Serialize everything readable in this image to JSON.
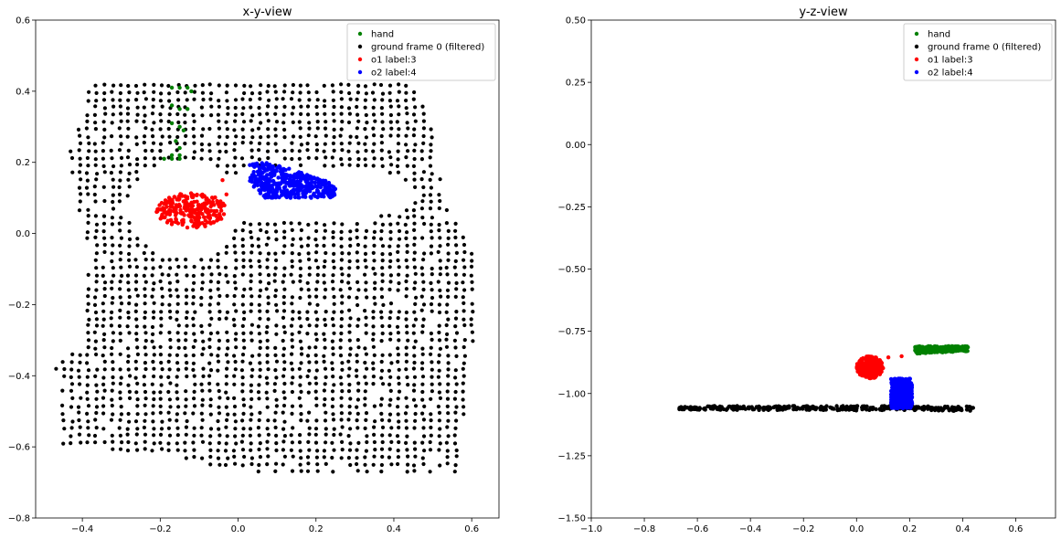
{
  "chart_data": [
    {
      "type": "scatter",
      "title": "x-y-view",
      "xlabel": "",
      "ylabel": "",
      "xlim": [
        -0.52,
        0.67
      ],
      "ylim": [
        -0.8,
        0.6
      ],
      "xticks": [
        "−0.4",
        "−0.2",
        "0.0",
        "0.2",
        "0.4",
        "0.6"
      ],
      "xtick_values": [
        -0.4,
        -0.2,
        0.0,
        0.2,
        0.4,
        0.6
      ],
      "yticks": [
        "0.6",
        "0.4",
        "0.2",
        "0.0",
        "−0.2",
        "−0.4",
        "−0.6",
        "−0.8"
      ],
      "ytick_values": [
        0.6,
        0.4,
        0.2,
        0.0,
        -0.2,
        -0.4,
        -0.6,
        -0.8
      ],
      "grid": false,
      "legend_position": "upper right",
      "series": [
        {
          "name": "hand",
          "color": "#008000",
          "shape": "points",
          "points": [
            [
              -0.17,
              0.41
            ],
            [
              -0.15,
              0.41
            ],
            [
              -0.13,
              0.41
            ],
            [
              -0.12,
              0.4
            ],
            [
              -0.17,
              0.36
            ],
            [
              -0.15,
              0.35
            ],
            [
              -0.13,
              0.35
            ],
            [
              -0.17,
              0.31
            ],
            [
              -0.15,
              0.3
            ],
            [
              -0.14,
              0.29
            ],
            [
              -0.16,
              0.26
            ],
            [
              -0.15,
              0.24
            ],
            [
              -0.17,
              0.22
            ],
            [
              -0.15,
              0.22
            ],
            [
              -0.19,
              0.21
            ],
            [
              -0.17,
              0.21
            ],
            [
              -0.15,
              0.21
            ]
          ]
        },
        {
          "name": "ground frame 0 (filtered)",
          "color": "#000000",
          "shape": "grid_region",
          "outline": [
            [
              -0.4,
              0.43
            ],
            [
              0.44,
              0.43
            ],
            [
              0.49,
              0.34
            ],
            [
              0.53,
              0.09
            ],
            [
              0.61,
              -0.05
            ],
            [
              0.61,
              -0.26
            ],
            [
              0.58,
              -0.45
            ],
            [
              0.58,
              -0.67
            ],
            [
              0.3,
              -0.67
            ],
            [
              0.0,
              -0.67
            ],
            [
              -0.18,
              -0.62
            ],
            [
              -0.45,
              -0.6
            ],
            [
              -0.47,
              -0.35
            ],
            [
              -0.4,
              -0.33
            ],
            [
              -0.38,
              -0.05
            ],
            [
              -0.44,
              0.2
            ],
            [
              -0.41,
              0.3
            ],
            [
              -0.38,
              0.35
            ]
          ],
          "holes": [
            {
              "type": "ellipse",
              "cx": -0.14,
              "cy": 0.07,
              "rx": 0.145,
              "ry": 0.14
            },
            {
              "type": "ellipse",
              "cx": 0.18,
              "cy": 0.11,
              "rx": 0.28,
              "ry": 0.08
            }
          ]
        },
        {
          "name": "o1 label:3",
          "color": "#ff0000",
          "shape": "blob",
          "cx": -0.12,
          "cy": 0.065,
          "rx": 0.09,
          "ry": 0.05,
          "extra_points": [
            [
              -0.04,
              0.15
            ],
            [
              -0.03,
              0.11
            ]
          ]
        },
        {
          "name": "o2 label:4",
          "color": "#0000ff",
          "shape": "band",
          "polygon": [
            [
              0.03,
              0.2
            ],
            [
              0.08,
              0.2
            ],
            [
              0.25,
              0.14
            ],
            [
              0.25,
              0.1
            ],
            [
              0.17,
              0.1
            ],
            [
              0.07,
              0.1
            ],
            [
              0.03,
              0.14
            ]
          ]
        }
      ]
    },
    {
      "type": "scatter",
      "title": "y-z-view",
      "xlabel": "",
      "ylabel": "",
      "xlim": [
        -1.0,
        0.75
      ],
      "ylim": [
        -1.5,
        0.5
      ],
      "xticks": [
        "−1.0",
        "−0.8",
        "−0.6",
        "−0.4",
        "−0.2",
        "0.0",
        "0.2",
        "0.4",
        "0.6"
      ],
      "xtick_values": [
        -1.0,
        -0.8,
        -0.6,
        -0.4,
        -0.2,
        0.0,
        0.2,
        0.4,
        0.6
      ],
      "yticks": [
        "0.50",
        "0.25",
        "0.00",
        "−0.25",
        "−0.50",
        "−0.75",
        "−1.00",
        "−1.25",
        "−1.50"
      ],
      "ytick_values": [
        0.5,
        0.25,
        0.0,
        -0.25,
        -0.5,
        -0.75,
        -1.0,
        -1.25,
        -1.5
      ],
      "grid": false,
      "legend_position": "upper right",
      "series": [
        {
          "name": "hand",
          "color": "#008000",
          "shape": "band",
          "polygon": [
            [
              0.22,
              -0.81
            ],
            [
              0.42,
              -0.81
            ],
            [
              0.42,
              -0.83
            ],
            [
              0.22,
              -0.84
            ]
          ]
        },
        {
          "name": "ground frame 0 (filtered)",
          "color": "#000000",
          "shape": "band",
          "polygon": [
            [
              -0.67,
              -1.05
            ],
            [
              0.44,
              -1.05
            ],
            [
              0.44,
              -1.07
            ],
            [
              -0.67,
              -1.065
            ]
          ]
        },
        {
          "name": "o1 label:3",
          "color": "#ff0000",
          "shape": "blob",
          "cx": 0.05,
          "cy": -0.895,
          "rx": 0.05,
          "ry": 0.045,
          "extra_points": [
            [
              0.12,
              -0.855
            ],
            [
              0.17,
              -0.85
            ]
          ]
        },
        {
          "name": "o2 label:4",
          "color": "#0000ff",
          "shape": "band",
          "polygon": [
            [
              0.13,
              -0.94
            ],
            [
              0.21,
              -0.94
            ],
            [
              0.21,
              -1.06
            ],
            [
              0.13,
              -1.06
            ]
          ]
        }
      ]
    }
  ]
}
